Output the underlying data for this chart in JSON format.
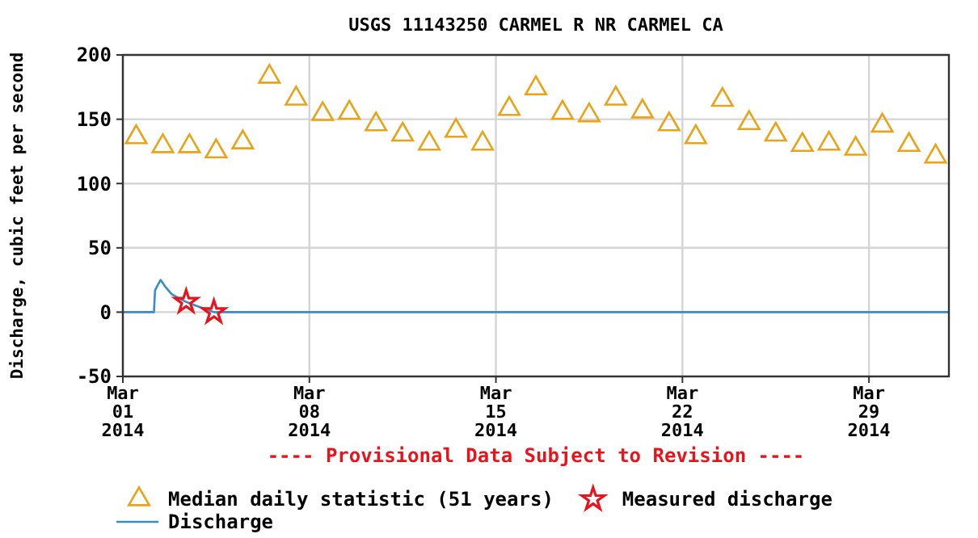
{
  "chart_data": {
    "type": "scatter",
    "title": "USGS 11143250 CARMEL R NR CARMEL CA",
    "ylabel": "Discharge, cubic feet per second",
    "xlim": [
      "2014-03-01",
      "2014-04-01"
    ],
    "xticks": [
      {
        "value": "2014-03-01",
        "label": "Mar\n01\n2014"
      },
      {
        "value": "2014-03-08",
        "label": "Mar\n08\n2014"
      },
      {
        "value": "2014-03-15",
        "label": "Mar\n15\n2014"
      },
      {
        "value": "2014-03-22",
        "label": "Mar\n22\n2014"
      },
      {
        "value": "2014-03-29",
        "label": "Mar\n29\n2014"
      }
    ],
    "ylim": [
      -50,
      200
    ],
    "yticks": [
      -50,
      0,
      50,
      100,
      150,
      200
    ],
    "grid": true,
    "legend": "bottom",
    "annotations": [
      "---- Provisional Data Subject to Revision ----"
    ],
    "series": [
      {
        "name": "Median daily statistic (51 years)",
        "marker": "triangle",
        "color": "#e8a317",
        "x": [
          "2014-03-01T12:00",
          "2014-03-02T12:00",
          "2014-03-03T12:00",
          "2014-03-04T12:00",
          "2014-03-05T12:00",
          "2014-03-06T12:00",
          "2014-03-07T12:00",
          "2014-03-08T12:00",
          "2014-03-09T12:00",
          "2014-03-10T12:00",
          "2014-03-11T12:00",
          "2014-03-12T12:00",
          "2014-03-13T12:00",
          "2014-03-14T12:00",
          "2014-03-15T12:00",
          "2014-03-16T12:00",
          "2014-03-17T12:00",
          "2014-03-18T12:00",
          "2014-03-19T12:00",
          "2014-03-20T12:00",
          "2014-03-21T12:00",
          "2014-03-22T12:00",
          "2014-03-23T12:00",
          "2014-03-24T12:00",
          "2014-03-25T12:00",
          "2014-03-26T12:00",
          "2014-03-27T12:00",
          "2014-03-28T12:00",
          "2014-03-29T12:00",
          "2014-03-30T12:00",
          "2014-03-31T12:00"
        ],
        "values": [
          136,
          129,
          129,
          125,
          132,
          183,
          166,
          154,
          155,
          146,
          138,
          131,
          141,
          131,
          158,
          174,
          155,
          153,
          166,
          156,
          146,
          136,
          165,
          147,
          138,
          130,
          131,
          127,
          145,
          130,
          121
        ]
      },
      {
        "name": "Measured discharge",
        "marker": "star",
        "color": "#e8141c",
        "x": [
          "2014-03-03T09:00",
          "2014-03-04T10:00"
        ],
        "values": [
          8,
          0
        ]
      },
      {
        "name": "Discharge",
        "type": "line",
        "line_style": "solid",
        "color": "#3a8cc8",
        "x": [
          "2014-03-01T00:00",
          "2014-03-02T04:00",
          "2014-03-02T05:00",
          "2014-03-02T08:00",
          "2014-03-02T10:00",
          "2014-03-02T14:00",
          "2014-03-02T20:00",
          "2014-03-03T04:00",
          "2014-03-03T09:00",
          "2014-03-03T18:00",
          "2014-03-04T04:00",
          "2014-03-04T10:00",
          "2014-04-01T00:00"
        ],
        "values": [
          0,
          0,
          17,
          22,
          25,
          20,
          14,
          10,
          8,
          5,
          2,
          0,
          0
        ]
      }
    ]
  }
}
